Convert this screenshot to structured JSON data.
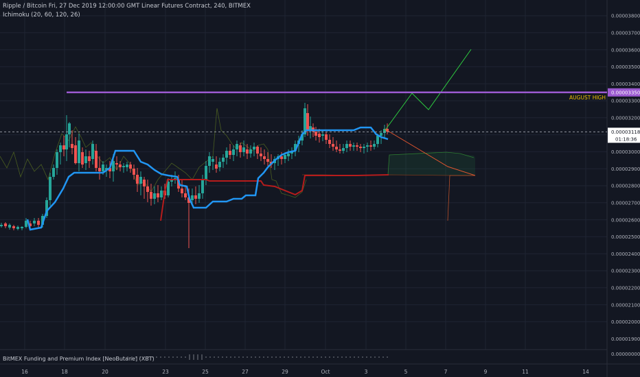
{
  "header": {
    "title": "Ripple / Bitcoin  Fri, 27 Dec 2019 12:00:00 GMT  Linear Futures Contract, 240, BITMEX",
    "indicator": "Ichimoku (20, 60, 120, 26)"
  },
  "subpanel": {
    "label": "BitMEX Funding and Premium Index [NeoButane] (XBT)",
    "zero_value": "0.00000000"
  },
  "price_axis": {
    "ticks": [
      "0.00003800",
      "0.00003700",
      "0.00003600",
      "0.00003500",
      "0.00003400",
      "0.00003300",
      "0.00003200",
      "0.00003000",
      "0.00002900",
      "0.00002800",
      "0.00002700",
      "0.00002600",
      "0.00002500",
      "0.00002400",
      "0.00002300",
      "0.00002200",
      "0.00002100",
      "0.00002000",
      "0.00001900"
    ],
    "current_price": "0.00003118",
    "countdown": "01:18:36",
    "august_high_price": "0.00003350",
    "august_high_label": "AUGUST HIGH"
  },
  "time_axis": {
    "ticks": [
      "16",
      "18",
      "20",
      "23",
      "25",
      "27",
      "29",
      "Oct",
      "3",
      "5",
      "7",
      "9",
      "11",
      "14"
    ]
  },
  "colors": {
    "background": "#131722",
    "up_candle": "#26a69a",
    "down_candle": "#ef5350",
    "august_line": "#9b59d0",
    "tenkan": "#2196f3",
    "kijun": "#b71c1c",
    "projection_up": "#2ecc40",
    "projection_down": "#e0552f",
    "price_line": "#9598a1"
  }
}
